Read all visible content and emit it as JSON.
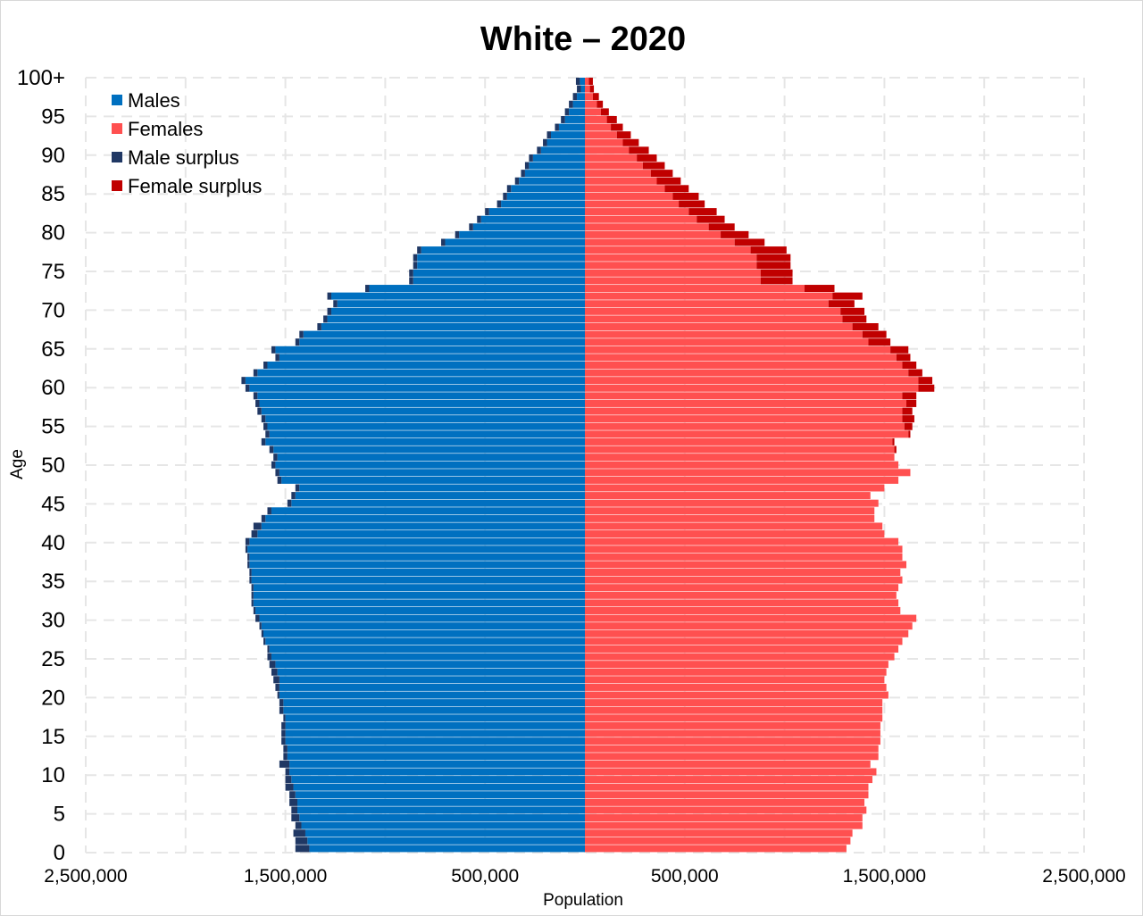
{
  "chart_data": {
    "type": "bar",
    "subtype": "population-pyramid",
    "title": "White – 2020",
    "xlabel": "Population",
    "ylabel": "Age",
    "xlim": [
      -2500000,
      2500000
    ],
    "x_tick_labels": [
      "2,500,000",
      "1,500,000",
      "500,000",
      "500,000",
      "1,500,000",
      "2,500,000"
    ],
    "y_tick_labels": [
      "0",
      "5",
      "10",
      "15",
      "20",
      "25",
      "30",
      "35",
      "40",
      "45",
      "50",
      "55",
      "60",
      "65",
      "70",
      "75",
      "80",
      "85",
      "90",
      "95",
      "100+"
    ],
    "grid": true,
    "legend_position": "top-left",
    "legend": [
      {
        "name": "Males",
        "color": "#0070c0"
      },
      {
        "name": "Females",
        "color": "#ff5050"
      },
      {
        "name": "Male surplus",
        "color": "#203864"
      },
      {
        "name": "Female surplus",
        "color": "#c00000"
      }
    ],
    "categories": [
      "0",
      "1",
      "2",
      "3",
      "4",
      "5",
      "6",
      "7",
      "8",
      "9",
      "10",
      "11",
      "12",
      "13",
      "14",
      "15",
      "16",
      "17",
      "18",
      "19",
      "20",
      "21",
      "22",
      "23",
      "24",
      "25",
      "26",
      "27",
      "28",
      "29",
      "30",
      "31",
      "32",
      "33",
      "34",
      "35",
      "36",
      "37",
      "38",
      "39",
      "40",
      "41",
      "42",
      "43",
      "44",
      "45",
      "46",
      "47",
      "48",
      "49",
      "50",
      "51",
      "52",
      "53",
      "54",
      "55",
      "56",
      "57",
      "58",
      "59",
      "60",
      "61",
      "62",
      "63",
      "64",
      "65",
      "66",
      "67",
      "68",
      "69",
      "70",
      "71",
      "72",
      "73",
      "74",
      "75",
      "76",
      "77",
      "78",
      "79",
      "80",
      "81",
      "82",
      "83",
      "84",
      "85",
      "86",
      "87",
      "88",
      "89",
      "90",
      "91",
      "92",
      "93",
      "94",
      "95",
      "96",
      "97",
      "98",
      "99",
      "100+"
    ],
    "series": [
      {
        "name": "Males",
        "values": [
          1380000,
          1390000,
          1400000,
          1420000,
          1430000,
          1440000,
          1440000,
          1450000,
          1460000,
          1470000,
          1480000,
          1480000,
          1490000,
          1490000,
          1500000,
          1500000,
          1500000,
          1500000,
          1510000,
          1510000,
          1530000,
          1530000,
          1530000,
          1540000,
          1550000,
          1570000,
          1580000,
          1600000,
          1610000,
          1620000,
          1630000,
          1650000,
          1660000,
          1660000,
          1660000,
          1670000,
          1670000,
          1680000,
          1680000,
          1690000,
          1680000,
          1640000,
          1620000,
          1600000,
          1570000,
          1470000,
          1450000,
          1430000,
          1520000,
          1530000,
          1550000,
          1540000,
          1560000,
          1600000,
          1580000,
          1590000,
          1600000,
          1620000,
          1630000,
          1640000,
          1680000,
          1700000,
          1640000,
          1590000,
          1530000,
          1550000,
          1430000,
          1410000,
          1320000,
          1290000,
          1270000,
          1240000,
          1270000,
          1080000,
          860000,
          860000,
          840000,
          840000,
          820000,
          700000,
          630000,
          560000,
          520000,
          480000,
          420000,
          390000,
          370000,
          330000,
          300000,
          280000,
          260000,
          220000,
          190000,
          170000,
          130000,
          100000,
          80000,
          60000,
          40000,
          20000,
          25000
        ]
      },
      {
        "name": "Females",
        "values": [
          1310000,
          1330000,
          1340000,
          1390000,
          1390000,
          1410000,
          1400000,
          1420000,
          1420000,
          1440000,
          1460000,
          1430000,
          1470000,
          1470000,
          1480000,
          1480000,
          1480000,
          1490000,
          1490000,
          1490000,
          1520000,
          1510000,
          1500000,
          1510000,
          1520000,
          1550000,
          1570000,
          1590000,
          1620000,
          1640000,
          1660000,
          1580000,
          1570000,
          1560000,
          1570000,
          1590000,
          1580000,
          1610000,
          1590000,
          1590000,
          1570000,
          1500000,
          1490000,
          1450000,
          1450000,
          1470000,
          1430000,
          1500000,
          1570000,
          1630000,
          1570000,
          1550000,
          1550000,
          1540000,
          1620000,
          1600000,
          1590000,
          1590000,
          1610000,
          1590000,
          1670000,
          1670000,
          1620000,
          1590000,
          1560000,
          1530000,
          1420000,
          1390000,
          1340000,
          1290000,
          1280000,
          1220000,
          1240000,
          1100000,
          880000,
          880000,
          860000,
          860000,
          830000,
          750000,
          680000,
          620000,
          560000,
          520000,
          470000,
          440000,
          400000,
          360000,
          330000,
          290000,
          260000,
          220000,
          190000,
          160000,
          130000,
          110000,
          80000,
          60000,
          40000,
          25000,
          20000
        ]
      },
      {
        "name": "Male surplus",
        "values": [
          70000,
          60000,
          60000,
          30000,
          40000,
          30000,
          40000,
          30000,
          40000,
          30000,
          20000,
          50000,
          20000,
          20000,
          20000,
          20000,
          20000,
          10000,
          20000,
          20000,
          10000,
          20000,
          30000,
          30000,
          30000,
          20000,
          10000,
          10000,
          10000,
          10000,
          20000,
          10000,
          10000,
          10000,
          10000,
          10000,
          10000,
          10000,
          10000,
          10000,
          20000,
          30000,
          40000,
          20000,
          20000,
          20000,
          20000,
          20000,
          20000,
          20000,
          20000,
          20000,
          20000,
          20000,
          20000,
          20000,
          20000,
          20000,
          20000,
          20000,
          20000,
          20000,
          20000,
          20000,
          20000,
          20000,
          20000,
          20000,
          20000,
          20000,
          20000,
          20000,
          20000,
          20000,
          20000,
          20000,
          20000,
          20000,
          20000,
          20000,
          20000,
          20000,
          20000,
          20000,
          20000,
          20000,
          20000,
          20000,
          20000,
          20000,
          20000,
          20000,
          20000,
          20000,
          20000,
          20000,
          20000,
          20000,
          20000,
          20000,
          20000
        ]
      },
      {
        "name": "Female surplus",
        "values": [
          0,
          0,
          0,
          0,
          0,
          0,
          0,
          0,
          0,
          0,
          0,
          0,
          0,
          0,
          0,
          0,
          0,
          0,
          0,
          0,
          0,
          0,
          0,
          0,
          0,
          0,
          0,
          0,
          0,
          0,
          0,
          0,
          0,
          0,
          0,
          0,
          0,
          0,
          0,
          0,
          0,
          0,
          0,
          0,
          0,
          0,
          0,
          0,
          0,
          0,
          0,
          0,
          10000,
          10000,
          10000,
          40000,
          60000,
          50000,
          50000,
          70000,
          80000,
          70000,
          70000,
          70000,
          70000,
          90000,
          110000,
          120000,
          130000,
          120000,
          120000,
          130000,
          150000,
          150000,
          160000,
          160000,
          170000,
          170000,
          180000,
          150000,
          140000,
          130000,
          140000,
          140000,
          130000,
          130000,
          120000,
          120000,
          110000,
          110000,
          100000,
          100000,
          80000,
          70000,
          60000,
          50000,
          40000,
          30000,
          30000,
          20000,
          20000
        ]
      }
    ]
  }
}
